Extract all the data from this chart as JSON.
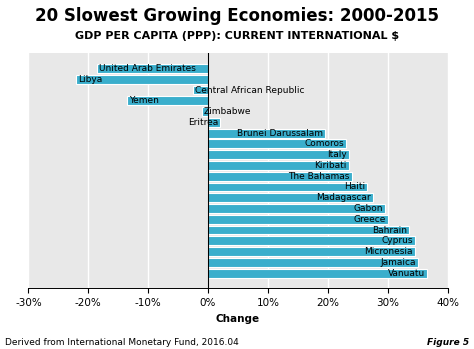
{
  "title": "20 Slowest Growing Economies: 2000-2015",
  "subtitle": "GDP PER CAPITA (PPP): CURRENT INTERNATIONAL $",
  "xlabel": "Change",
  "footer_left": "Derived from International Monetary Fund, 2016.04",
  "footer_right": "Figure 5",
  "categories": [
    "United Arab Emirates",
    "Libya",
    "Central African Republic",
    "Yemen",
    "Zimbabwe",
    "Eritrea",
    "Brunei Darussalam",
    "Comoros",
    "Italy",
    "Kiribati",
    "The Bahamas",
    "Haiti",
    "Madagascar",
    "Gabon",
    "Greece",
    "Bahrain",
    "Cyprus",
    "Micronesia",
    "Jamaica",
    "Vanuatu"
  ],
  "values": [
    -18.5,
    -22.0,
    -2.5,
    -13.5,
    -1.0,
    2.0,
    19.5,
    23.0,
    23.5,
    23.5,
    24.0,
    26.5,
    27.5,
    29.5,
    30.0,
    33.5,
    34.5,
    34.5,
    35.0,
    36.5
  ],
  "bar_color": "#3aaecc",
  "background_color": "#ffffff",
  "plot_bg_color": "#e8e8e8",
  "xlim": [
    -30,
    40
  ],
  "xticks": [
    -30,
    -20,
    -10,
    0,
    10,
    20,
    30,
    40
  ],
  "title_fontsize": 12,
  "subtitle_fontsize": 8,
  "axis_fontsize": 7.5,
  "label_fontsize": 6.5,
  "footer_fontsize": 6.5
}
